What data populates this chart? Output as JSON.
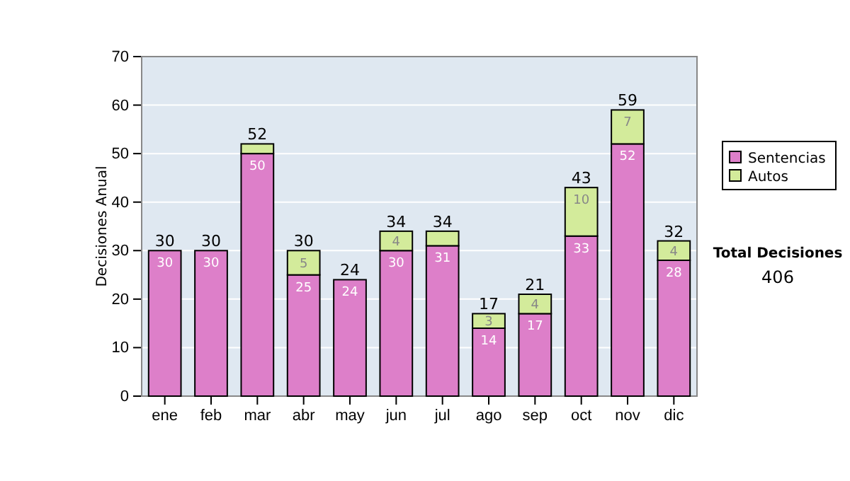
{
  "chart_data": {
    "type": "bar",
    "stacked": true,
    "ylabel": "Decisiones Anual",
    "categories": [
      "ene",
      "feb",
      "mar",
      "abr",
      "may",
      "jun",
      "jul",
      "ago",
      "sep",
      "oct",
      "nov",
      "dic"
    ],
    "series": [
      {
        "name": "Sentencias",
        "color": "#dd7fc9",
        "values": [
          30,
          30,
          50,
          25,
          24,
          30,
          31,
          14,
          17,
          33,
          52,
          28
        ],
        "value_labels": [
          "30",
          "30",
          "50",
          "25",
          "24",
          "30",
          "31",
          "14",
          "17",
          "33",
          "52",
          "28"
        ]
      },
      {
        "name": "Autos",
        "color": "#d3eb9b",
        "values": [
          0,
          0,
          2,
          5,
          0,
          4,
          3,
          3,
          4,
          10,
          7,
          4
        ],
        "value_labels": [
          null,
          null,
          null,
          "5",
          null,
          "4",
          null,
          "3",
          "4",
          "10",
          "7",
          "4"
        ]
      }
    ],
    "totals": [
      "30",
      "30",
      "52",
      "30",
      "24",
      "34",
      "34",
      "17",
      "21",
      "43",
      "59",
      "32"
    ],
    "ylim": [
      0,
      70
    ],
    "yticks": [
      0,
      10,
      20,
      30,
      40,
      50,
      60,
      70
    ],
    "grid": "y",
    "legend": "right",
    "annotations": [
      "Total Decisiones",
      "406"
    ]
  }
}
